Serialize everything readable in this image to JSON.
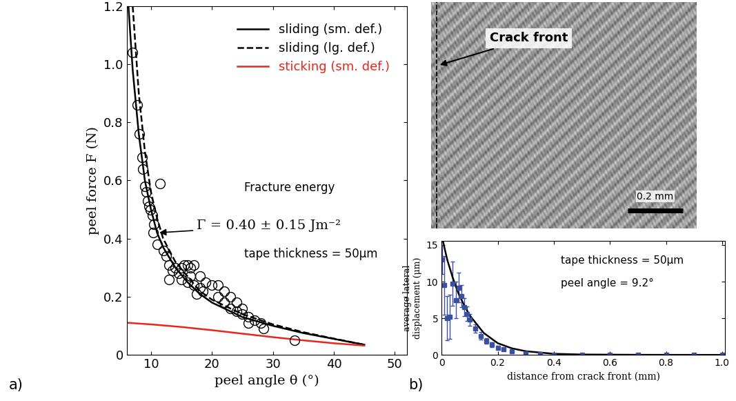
{
  "chart_data": [
    {
      "type": "line",
      "panel_label": "a)",
      "x_label": "peel angle θ (°)",
      "y_label": "peel force F (N)",
      "xlim": [
        6,
        52
      ],
      "ylim": [
        0,
        1.2
      ],
      "xticks": [
        10,
        20,
        30,
        40,
        50
      ],
      "yticks": [
        0,
        0.2,
        0.4,
        0.6,
        0.8,
        1.0,
        1.2
      ],
      "legend": "upper right",
      "annotations": [
        "Fracture energy",
        "Γ = 0.40 ± 0.15 Jm⁻²",
        "tape thickness = 50μm"
      ],
      "series": [
        {
          "name": "sliding (sm. def.)",
          "type": "line",
          "color": "#000000",
          "line_style": "solid",
          "x": [
            6.3,
            7,
            8,
            9,
            10,
            11,
            12,
            14,
            16,
            18,
            20,
            25,
            30,
            35,
            40,
            45
          ],
          "values": [
            1.2,
            0.98,
            0.76,
            0.6,
            0.5,
            0.42,
            0.37,
            0.3,
            0.25,
            0.21,
            0.18,
            0.13,
            0.1,
            0.075,
            0.055,
            0.035
          ]
        },
        {
          "name": "sliding (lg. def.)",
          "type": "line",
          "color": "#000000",
          "line_style": "dashed",
          "x": [
            7,
            7.5,
            8,
            9,
            10,
            11,
            12,
            14,
            16,
            18,
            20,
            25,
            30,
            35,
            40,
            45
          ],
          "values": [
            1.2,
            1.05,
            0.9,
            0.7,
            0.56,
            0.47,
            0.4,
            0.32,
            0.27,
            0.22,
            0.19,
            0.14,
            0.105,
            0.078,
            0.056,
            0.035
          ]
        },
        {
          "name": "sticking (sm. def.)",
          "type": "line",
          "color": "#e8251f",
          "line_style": "solid",
          "x": [
            5,
            10,
            15,
            20,
            25,
            30,
            35,
            40,
            45
          ],
          "values": [
            0.112,
            0.105,
            0.096,
            0.085,
            0.073,
            0.061,
            0.05,
            0.04,
            0.032
          ]
        },
        {
          "type": "scatter",
          "color": "#000000",
          "marker": "circle",
          "x": [
            7,
            7.8,
            8.1,
            8.5,
            8.7,
            9,
            9.2,
            9.5,
            9.7,
            9.9,
            10.2,
            10.5,
            10.3,
            11.5,
            11,
            12,
            12.5,
            13,
            13.5,
            13,
            14,
            14.5,
            15,
            15.5,
            16,
            16.5,
            17,
            15,
            16,
            17,
            18,
            18.5,
            17.5,
            19,
            20,
            21,
            22,
            23,
            24,
            25,
            22,
            23,
            24,
            25,
            26,
            27,
            28,
            28.5,
            26,
            33.5,
            21,
            18,
            16.5
          ],
          "values": [
            1.04,
            0.86,
            0.76,
            0.68,
            0.64,
            0.58,
            0.56,
            0.53,
            0.51,
            0.5,
            0.48,
            0.45,
            0.42,
            0.59,
            0.38,
            0.36,
            0.34,
            0.31,
            0.29,
            0.26,
            0.3,
            0.28,
            0.3,
            0.31,
            0.31,
            0.3,
            0.31,
            0.26,
            0.25,
            0.24,
            0.23,
            0.22,
            0.21,
            0.25,
            0.24,
            0.24,
            0.22,
            0.2,
            0.18,
            0.16,
            0.18,
            0.16,
            0.15,
            0.14,
            0.13,
            0.12,
            0.11,
            0.09,
            0.11,
            0.05,
            0.2,
            0.27,
            0.27
          ]
        }
      ]
    },
    {
      "type": "image",
      "annotations": [
        "Crack front"
      ],
      "scale_bar": "0.2 mm"
    },
    {
      "type": "scatter",
      "panel_label": "b)",
      "x_label": "distance from crack front (mm)",
      "y_label": "average lateral\ndisplacement (μm)",
      "xlim": [
        0,
        1.01
      ],
      "ylim": [
        0,
        15.6
      ],
      "xticks": [
        0,
        0.2,
        0.4,
        0.6,
        0.8,
        1.0
      ],
      "yticks": [
        0,
        5,
        10,
        15
      ],
      "annotations": [
        "tape thickness = 50μm",
        "peel angle = 9.2°"
      ],
      "series": [
        {
          "type": "scatter",
          "color": "#3a4fa0",
          "marker": "square",
          "x": [
            0.002,
            0.01,
            0.02,
            0.03,
            0.04,
            0.05,
            0.06,
            0.07,
            0.08,
            0.09,
            0.1,
            0.12,
            0.14,
            0.16,
            0.18,
            0.2,
            0.22,
            0.25,
            0.3,
            0.35,
            0.4,
            0.5,
            0.6,
            0.7,
            0.8,
            0.9,
            1.0
          ],
          "values": [
            13,
            9.5,
            5,
            5.2,
            9.7,
            7.5,
            9.2,
            8,
            6.5,
            5.6,
            4.8,
            3.6,
            2.6,
            1.9,
            1.4,
            1.0,
            0.75,
            0.5,
            0.25,
            0.12,
            0.06,
            0.02,
            0.01,
            0,
            0,
            0,
            0
          ],
          "errors": [
            2,
            4,
            3,
            3,
            3,
            2.5,
            2,
            1.5,
            1.2,
            1,
            0.8,
            0.6,
            0.5,
            0.4,
            0.3,
            0.25,
            0.2,
            0.15,
            0.1,
            0.08,
            0.05,
            0.03,
            0.02,
            0.02,
            0.02,
            0.02,
            0.02
          ]
        },
        {
          "type": "line",
          "color": "#000000",
          "line_style": "solid",
          "x": [
            0.005,
            0.02,
            0.04,
            0.06,
            0.08,
            0.1,
            0.15,
            0.2,
            0.25,
            0.3,
            0.4,
            0.5,
            0.7,
            1.0
          ],
          "values": [
            15.5,
            13,
            10.5,
            8.4,
            6.8,
            5.4,
            3.0,
            1.6,
            0.9,
            0.5,
            0.15,
            0.05,
            0.01,
            0
          ]
        }
      ]
    }
  ]
}
